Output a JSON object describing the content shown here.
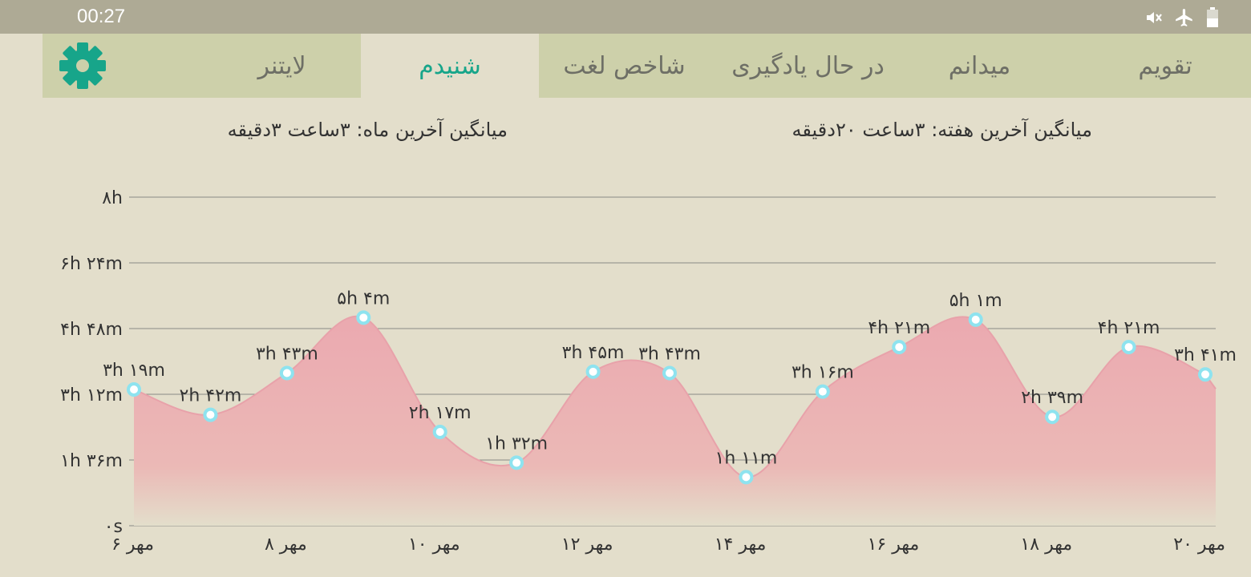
{
  "status_bar": {
    "time": "00:27",
    "icons": [
      "mute-icon",
      "airplane-icon",
      "battery-icon"
    ]
  },
  "tabs": [
    {
      "label": "تقویم",
      "active": false
    },
    {
      "label": "میدانم",
      "active": false
    },
    {
      "label": "در حال یادگیری",
      "active": false
    },
    {
      "label": "شاخص لغت",
      "active": false
    },
    {
      "label": "شنیدم",
      "active": true
    },
    {
      "label": "لایتنر",
      "active": false
    }
  ],
  "settings_icon": "gear-icon",
  "colors": {
    "accent": "#17a58a",
    "tab_bar": "#cdd0aa",
    "background": "#e3decb",
    "status_bar": "#aeaa95",
    "area_fill": "#eba9b0",
    "point_marker": "#8ee3ef"
  },
  "averages": {
    "week": "میانگین آخرین هفته: ۳ساعت  ۲۰دقیقه",
    "month": "میانگین آخرین ماه: ۳ساعت  ۳دقیقه"
  },
  "chart_data": {
    "type": "area",
    "y_unit": "minutes",
    "ylim": [
      0,
      480
    ],
    "y_ticks": [
      0,
      96,
      192,
      288,
      384,
      480
    ],
    "y_tick_labels": [
      "۰s",
      "۱h ۳۶m",
      "۳h ۱۲m",
      "۴h ۴۸m",
      "۶h ۲۴m",
      "۸h"
    ],
    "grid": true,
    "x_tick_labels": [
      "۶ مهر",
      "۸ مهر",
      "۱۰ مهر",
      "۱۲ مهر",
      "۱۴ مهر",
      "۱۶ مهر",
      "۱۸ مهر",
      "۲۰ مهر"
    ],
    "x_tick_days": [
      6,
      8,
      10,
      12,
      14,
      16,
      18,
      20
    ],
    "points": [
      {
        "day": 6,
        "value": 199,
        "label": "۳h ۱۹m"
      },
      {
        "day": 7,
        "value": 162,
        "label": "۲h ۴۲m"
      },
      {
        "day": 8,
        "value": 223,
        "label": "۳h ۴۳m"
      },
      {
        "day": 9,
        "value": 304,
        "label": "۵h ۴m"
      },
      {
        "day": 10,
        "value": 137,
        "label": "۲h ۱۷m"
      },
      {
        "day": 11,
        "value": 92,
        "label": "۱h ۳۲m"
      },
      {
        "day": 12,
        "value": 225,
        "label": "۳h ۴۵m"
      },
      {
        "day": 13,
        "value": 223,
        "label": "۳h ۴۳m"
      },
      {
        "day": 14,
        "value": 71,
        "label": "۱h ۱۱m"
      },
      {
        "day": 15,
        "value": 196,
        "label": "۳h ۱۶m"
      },
      {
        "day": 16,
        "value": 261,
        "label": "۴h ۲۱m"
      },
      {
        "day": 17,
        "value": 301,
        "label": "۵h ۱m"
      },
      {
        "day": 18,
        "value": 159,
        "label": "۲h ۳۹m"
      },
      {
        "day": 19,
        "value": 261,
        "label": "۴h ۲۱m"
      },
      {
        "day": 20,
        "value": 221,
        "label": "۳h ۴۱m"
      }
    ]
  }
}
